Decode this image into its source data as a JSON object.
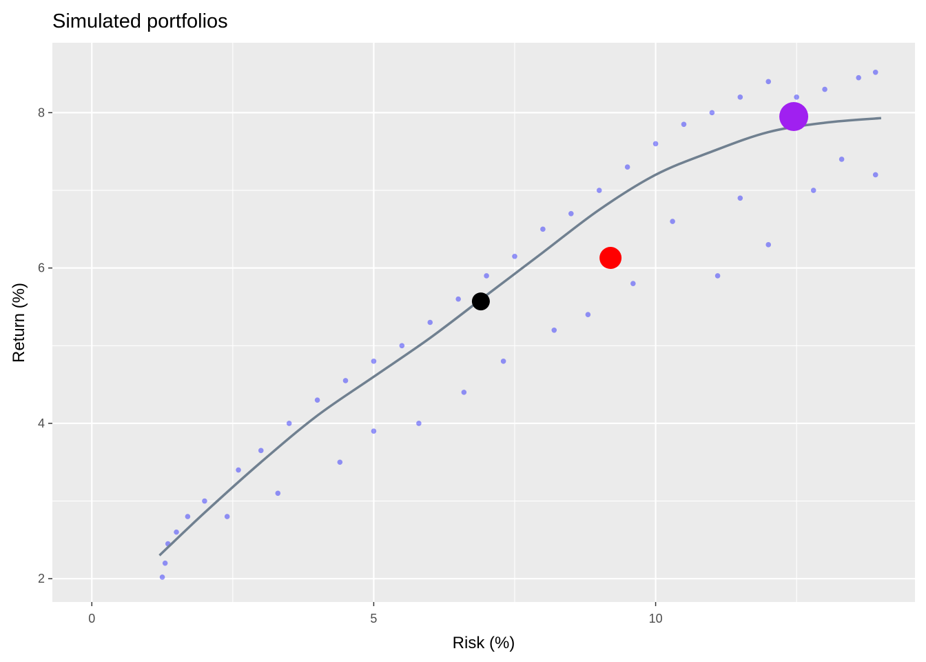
{
  "chart_data": {
    "type": "scatter",
    "title": "Simulated portfolios",
    "xlabel": "Risk (%)",
    "ylabel": "Return (%)",
    "xlim": [
      -0.7,
      14.6
    ],
    "ylim": [
      1.7,
      8.9
    ],
    "x_ticks": [
      0,
      5,
      10
    ],
    "x_tick_labels": [
      "0",
      "5",
      "10"
    ],
    "y_ticks": [
      2,
      4,
      6,
      8
    ],
    "y_tick_labels": [
      "2",
      "4",
      "6",
      "8"
    ],
    "grid": true,
    "legend": "none",
    "colors": {
      "panel": "#ebebeb",
      "grid_major": "#ffffff",
      "portfolios": "#0000ff",
      "trend_line": "#708090",
      "min_risk": "#000000",
      "equal_weight": "#ff0000",
      "max_sharpe": "#a020f0"
    },
    "trend_line": [
      {
        "x": 1.2,
        "y": 2.3
      },
      {
        "x": 2.0,
        "y": 2.85
      },
      {
        "x": 3.0,
        "y": 3.5
      },
      {
        "x": 4.0,
        "y": 4.1
      },
      {
        "x": 5.0,
        "y": 4.6
      },
      {
        "x": 6.0,
        "y": 5.1
      },
      {
        "x": 7.0,
        "y": 5.65
      },
      {
        "x": 8.0,
        "y": 6.2
      },
      {
        "x": 9.0,
        "y": 6.75
      },
      {
        "x": 10.0,
        "y": 7.2
      },
      {
        "x": 11.0,
        "y": 7.5
      },
      {
        "x": 12.0,
        "y": 7.75
      },
      {
        "x": 13.0,
        "y": 7.87
      },
      {
        "x": 14.0,
        "y": 7.93
      }
    ],
    "highlights": [
      {
        "x": 6.9,
        "y": 5.57,
        "color": "#000000",
        "size": 13
      },
      {
        "x": 9.2,
        "y": 6.13,
        "color": "#ff0000",
        "size": 16
      },
      {
        "x": 12.45,
        "y": 7.95,
        "color": "#a020f0",
        "size": 21
      }
    ],
    "sample_points": [
      {
        "x": 1.25,
        "y": 2.02
      },
      {
        "x": 1.3,
        "y": 2.2
      },
      {
        "x": 1.35,
        "y": 2.45
      },
      {
        "x": 1.5,
        "y": 2.6
      },
      {
        "x": 1.7,
        "y": 2.8
      },
      {
        "x": 2.0,
        "y": 3.0
      },
      {
        "x": 2.4,
        "y": 2.8
      },
      {
        "x": 2.6,
        "y": 3.4
      },
      {
        "x": 3.0,
        "y": 3.65
      },
      {
        "x": 3.3,
        "y": 3.1
      },
      {
        "x": 3.5,
        "y": 4.0
      },
      {
        "x": 4.0,
        "y": 4.3
      },
      {
        "x": 4.4,
        "y": 3.5
      },
      {
        "x": 4.5,
        "y": 4.55
      },
      {
        "x": 5.0,
        "y": 4.8
      },
      {
        "x": 5.0,
        "y": 3.9
      },
      {
        "x": 5.5,
        "y": 5.0
      },
      {
        "x": 5.8,
        "y": 4.0
      },
      {
        "x": 6.0,
        "y": 5.3
      },
      {
        "x": 6.5,
        "y": 5.6
      },
      {
        "x": 6.6,
        "y": 4.4
      },
      {
        "x": 7.0,
        "y": 5.9
      },
      {
        "x": 7.3,
        "y": 4.8
      },
      {
        "x": 7.5,
        "y": 6.15
      },
      {
        "x": 8.0,
        "y": 6.5
      },
      {
        "x": 8.2,
        "y": 5.2
      },
      {
        "x": 8.5,
        "y": 6.7
      },
      {
        "x": 8.8,
        "y": 5.4
      },
      {
        "x": 9.0,
        "y": 7.0
      },
      {
        "x": 9.5,
        "y": 7.3
      },
      {
        "x": 9.6,
        "y": 5.8
      },
      {
        "x": 10.0,
        "y": 7.6
      },
      {
        "x": 10.3,
        "y": 6.6
      },
      {
        "x": 10.5,
        "y": 7.85
      },
      {
        "x": 11.0,
        "y": 8.0
      },
      {
        "x": 11.1,
        "y": 5.9
      },
      {
        "x": 11.5,
        "y": 8.2
      },
      {
        "x": 11.5,
        "y": 6.9
      },
      {
        "x": 12.0,
        "y": 8.4
      },
      {
        "x": 12.0,
        "y": 6.3
      },
      {
        "x": 12.5,
        "y": 8.2
      },
      {
        "x": 12.8,
        "y": 7.0
      },
      {
        "x": 13.0,
        "y": 8.3
      },
      {
        "x": 13.3,
        "y": 7.4
      },
      {
        "x": 13.6,
        "y": 8.45
      },
      {
        "x": 13.9,
        "y": 8.52
      },
      {
        "x": 13.9,
        "y": 7.2
      }
    ]
  }
}
